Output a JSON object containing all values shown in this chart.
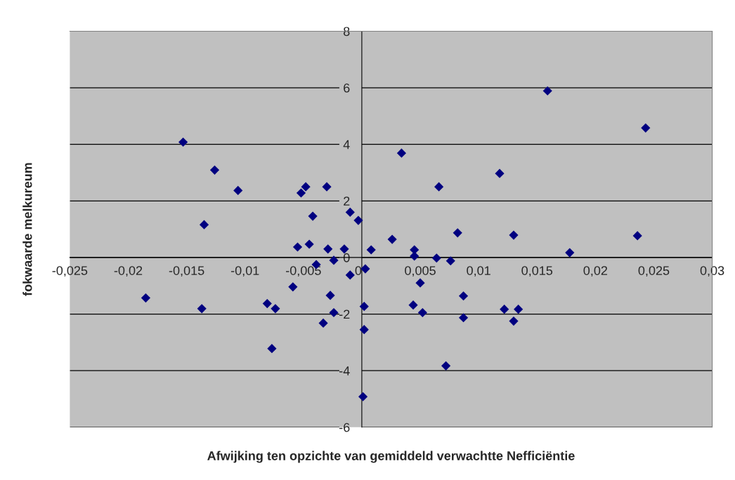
{
  "chart_data": {
    "type": "scatter",
    "xlabel": "Afwijking ten opzichte van gemiddeld verwachtte Nefficiëntie",
    "ylabel": "fokwaarde melkureum",
    "x": [
      -0.0185,
      -0.0153,
      -0.0137,
      -0.0135,
      -0.0126,
      -0.0106,
      -0.0081,
      -0.0077,
      -0.0074,
      -0.0059,
      -0.0055,
      -0.0052,
      -0.0048,
      -0.0045,
      -0.0042,
      -0.0039,
      -0.0033,
      -0.003,
      -0.0029,
      -0.0027,
      -0.0024,
      -0.0024,
      -0.0015,
      -0.001,
      -0.001,
      -0.0003,
      0.0001,
      0.0002,
      0.0002,
      0.0003,
      0.0008,
      0.0026,
      0.0034,
      0.0044,
      0.0045,
      0.0045,
      0.005,
      0.0052,
      0.0064,
      0.0066,
      0.0072,
      0.0076,
      0.0082,
      0.0087,
      0.0087,
      0.0118,
      0.0122,
      0.013,
      0.013,
      0.0134,
      0.0159,
      0.0178,
      0.0236,
      0.0243
    ],
    "values": [
      -1.43,
      4.08,
      -1.81,
      1.16,
      3.09,
      2.37,
      -1.63,
      -3.22,
      -1.81,
      -1.04,
      0.37,
      2.28,
      2.5,
      0.47,
      1.46,
      -0.25,
      -2.32,
      2.5,
      0.3,
      -1.34,
      -1.95,
      -0.1,
      0.3,
      1.6,
      -0.62,
      1.31,
      -4.92,
      -1.73,
      -2.55,
      -0.4,
      0.27,
      0.64,
      3.69,
      -1.68,
      0.27,
      0.05,
      -0.9,
      -1.95,
      -0.02,
      2.5,
      -3.83,
      -0.12,
      0.87,
      -1.36,
      -2.13,
      2.97,
      -1.83,
      0.79,
      -2.25,
      -1.83,
      5.89,
      0.17,
      0.77,
      4.58
    ],
    "color": "#000080",
    "marker": "diamond",
    "xlim": [
      -0.025,
      0.03
    ],
    "ylim": [
      -6,
      8
    ],
    "xticks": [
      {
        "value": -0.025,
        "label": "-0,025"
      },
      {
        "value": -0.02,
        "label": "-0,02"
      },
      {
        "value": -0.015,
        "label": "-0,015"
      },
      {
        "value": -0.01,
        "label": "-0,01"
      },
      {
        "value": -0.005,
        "label": "-0,005"
      },
      0,
      {
        "value": 0.005,
        "label": "0,005"
      },
      {
        "value": 0.01,
        "label": "0,01"
      },
      {
        "value": 0.015,
        "label": "0,015"
      },
      {
        "value": 0.02,
        "label": "0,02"
      },
      {
        "value": 0.025,
        "label": "0,025"
      },
      {
        "value": 0.03,
        "label": "0,03"
      }
    ],
    "yticks": [
      -6,
      -4,
      -2,
      0,
      2,
      4,
      6,
      8
    ],
    "grid": "y"
  }
}
